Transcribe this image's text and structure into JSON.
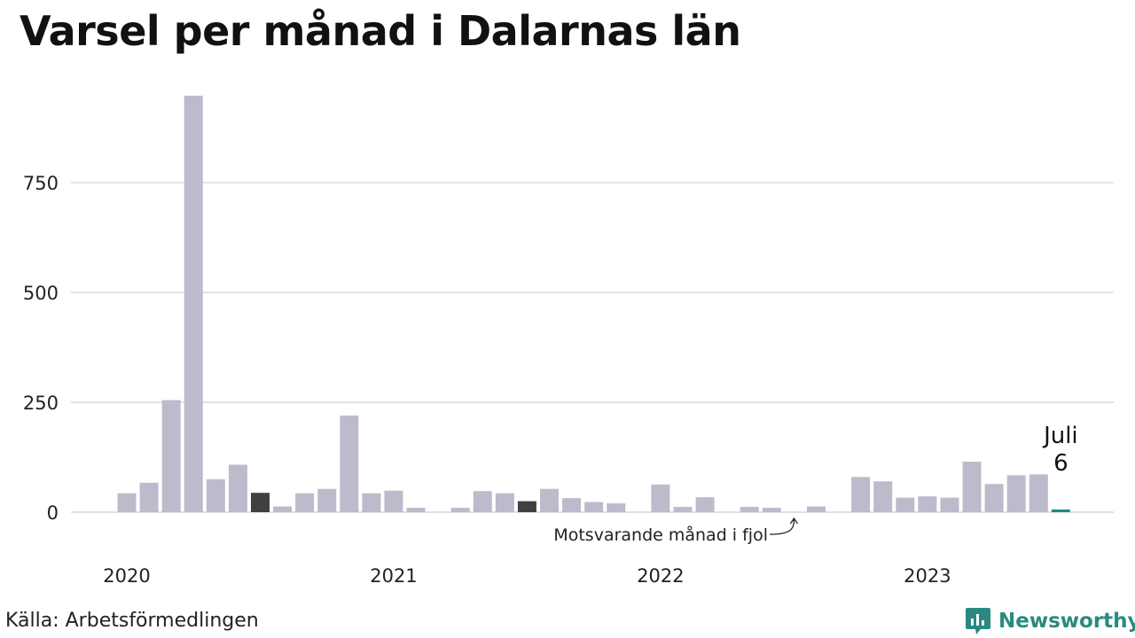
{
  "title": "Varsel per månad i Dalarnas län",
  "source": "Källa: Arbetsförmedlingen",
  "brand": {
    "name": "Newsworthy",
    "icon": "newsworthy-logo-icon"
  },
  "colors": {
    "bar": "#bcbbcb",
    "highlight": "#404040",
    "current": "#1e8a84",
    "grid": "#e2e2e2",
    "brand": "#2a8a80"
  },
  "annotation": {
    "month": "Juli",
    "value": "6"
  },
  "note": "Motsvarande månad i fjol",
  "chart_data": {
    "type": "bar",
    "title": "Varsel per månad i Dalarnas län",
    "xlabel": "",
    "ylabel": "",
    "ylim": [
      0,
      950
    ],
    "yticks": [
      0,
      250,
      500,
      750
    ],
    "xtick_labels": [
      {
        "label": "2020",
        "index": 0
      },
      {
        "label": "2021",
        "index": 12
      },
      {
        "label": "2022",
        "index": 24
      },
      {
        "label": "2023",
        "index": 36
      }
    ],
    "grid": true,
    "months": [
      "2020-01",
      "2020-02",
      "2020-03",
      "2020-04",
      "2020-05",
      "2020-06",
      "2020-07",
      "2020-08",
      "2020-09",
      "2020-10",
      "2020-11",
      "2020-12",
      "2021-01",
      "2021-02",
      "2021-03",
      "2021-04",
      "2021-05",
      "2021-06",
      "2021-07",
      "2021-08",
      "2021-09",
      "2021-10",
      "2021-11",
      "2021-12",
      "2022-01",
      "2022-02",
      "2022-03",
      "2022-04",
      "2022-05",
      "2022-06",
      "2022-07",
      "2022-08",
      "2022-09",
      "2022-10",
      "2022-11",
      "2022-12",
      "2023-01",
      "2023-02",
      "2023-03",
      "2023-04",
      "2023-05",
      "2023-06",
      "2023-07"
    ],
    "values": [
      43,
      67,
      255,
      948,
      75,
      108,
      44,
      13,
      43,
      53,
      220,
      43,
      49,
      10,
      0,
      10,
      48,
      43,
      25,
      53,
      32,
      23,
      20,
      0,
      63,
      12,
      34,
      0,
      12,
      10,
      0,
      13,
      0,
      80,
      70,
      33,
      36,
      33,
      115,
      64,
      84,
      86,
      6
    ],
    "highlight_indices": [
      6,
      18
    ],
    "current_index": 42
  }
}
